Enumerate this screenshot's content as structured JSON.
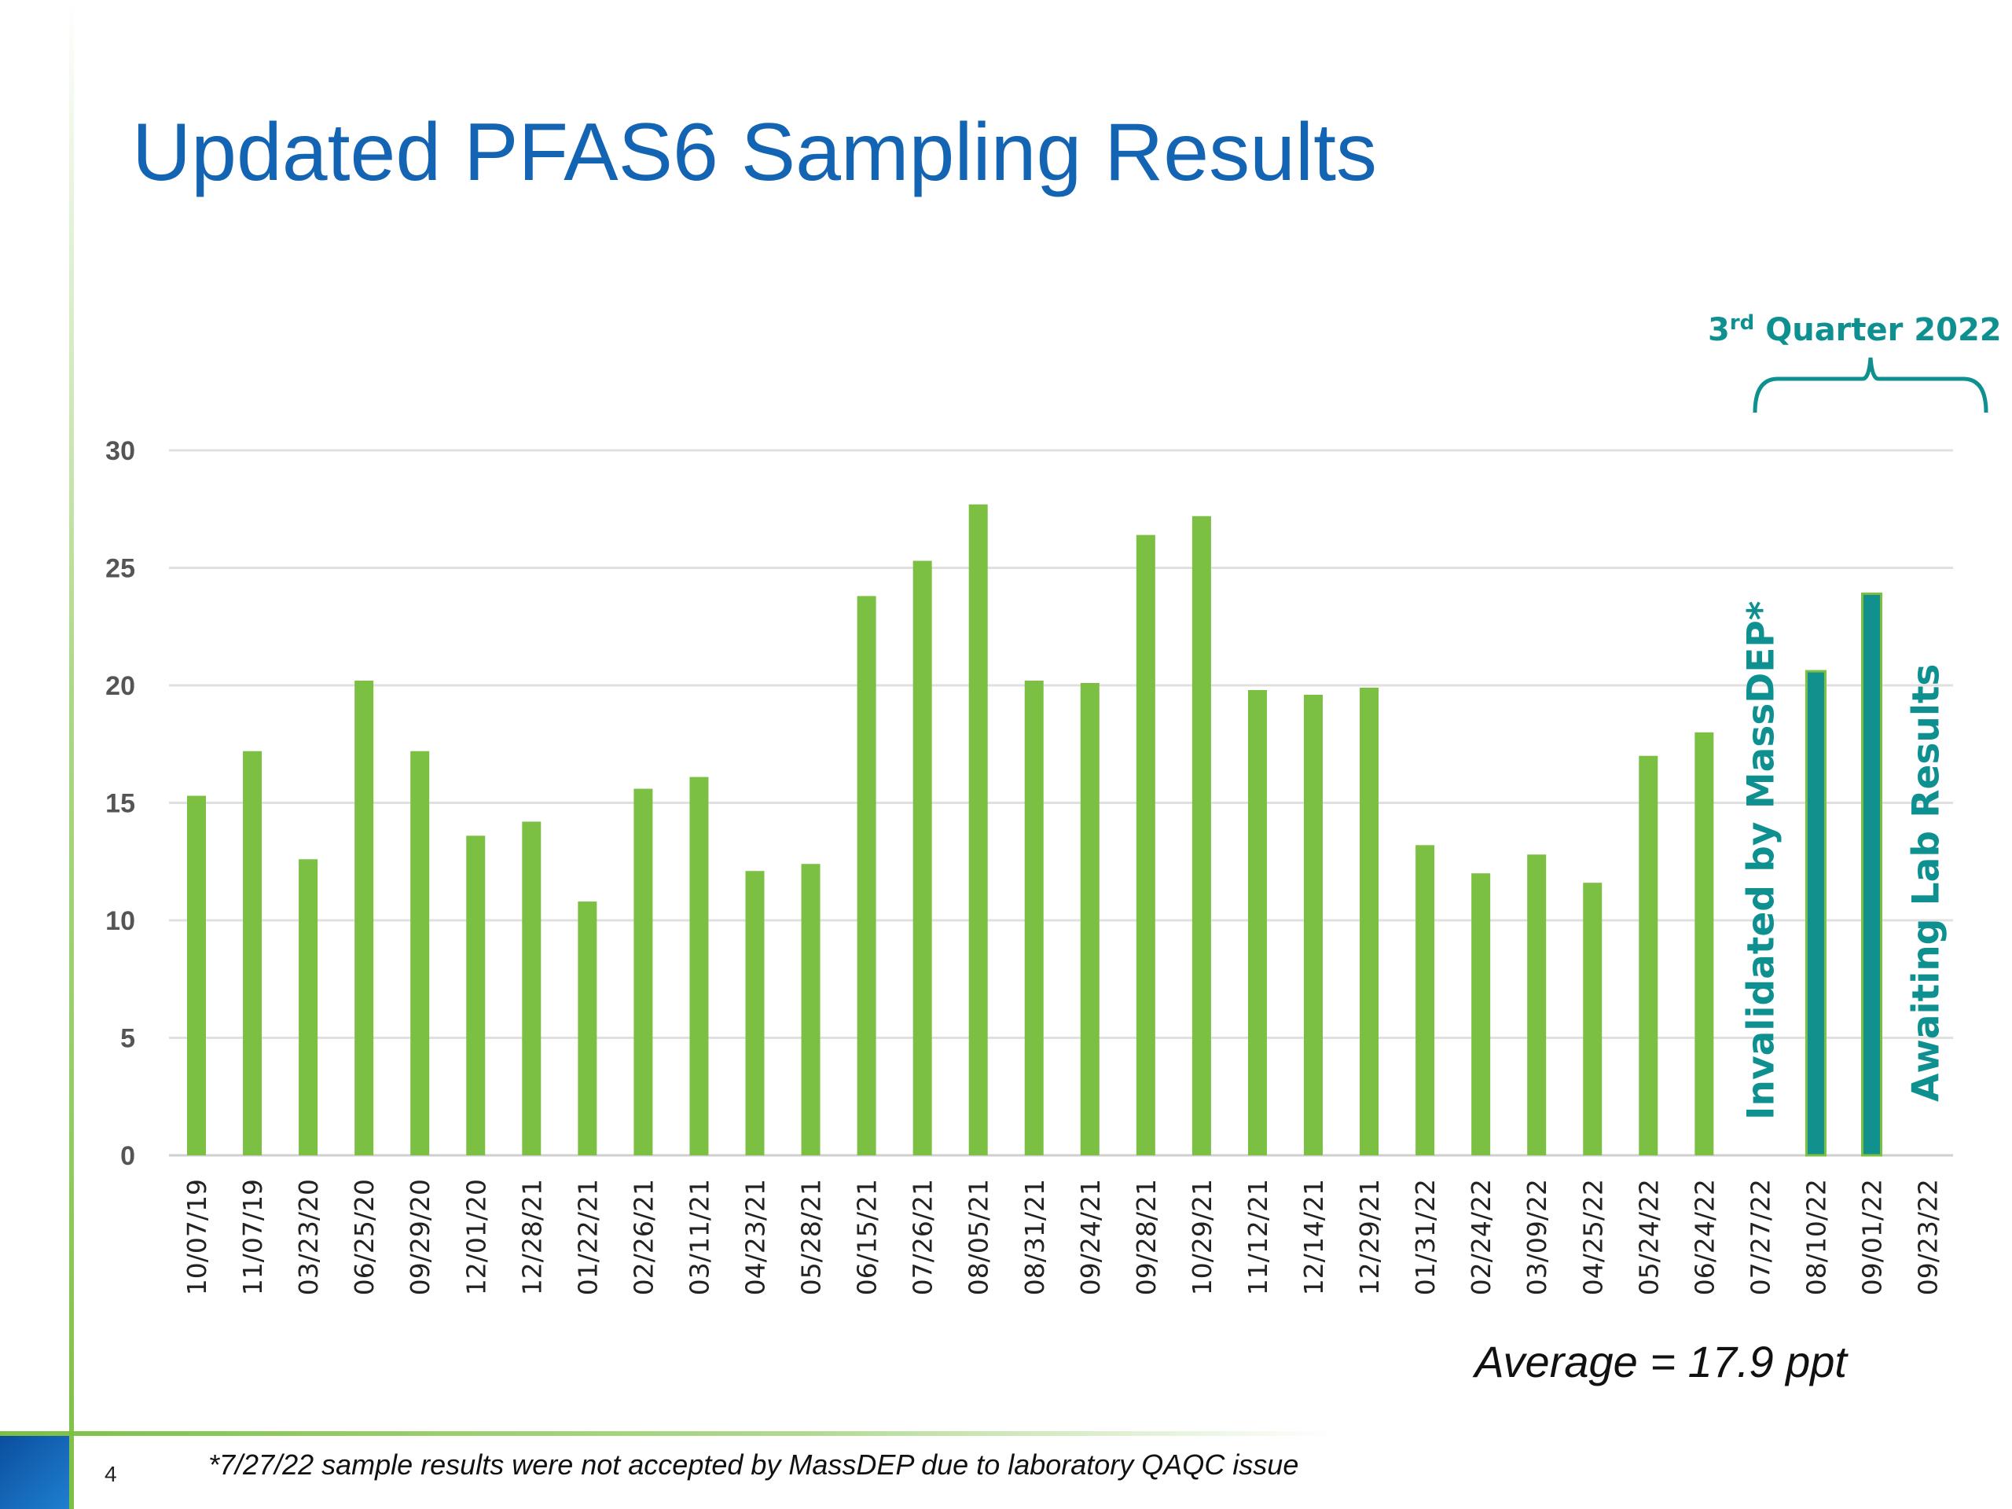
{
  "slide": {
    "title": "Updated PFAS6 Sampling Results",
    "average_note": "Average = 17.9 ppt",
    "footnote": "*7/27/22 sample results were not accepted by MassDEP due to laboratory QAQC issue",
    "page_number": "4"
  },
  "chart_data": {
    "type": "bar",
    "title": "Updated PFAS6 Sampling Results",
    "xlabel": "",
    "ylabel": "",
    "ylim": [
      0,
      30
    ],
    "yticks": [
      0,
      5,
      10,
      15,
      20,
      25,
      30
    ],
    "grid": true,
    "categories": [
      "10/07/19",
      "11/07/19",
      "03/23/20",
      "06/25/20",
      "09/29/20",
      "12/01/20",
      "12/28/21",
      "01/22/21",
      "02/26/21",
      "03/11/21",
      "04/23/21",
      "05/28/21",
      "06/15/21",
      "07/26/21",
      "08/05/21",
      "08/31/21",
      "09/24/21",
      "09/28/21",
      "10/29/21",
      "11/12/21",
      "12/14/21",
      "12/29/21",
      "01/31/22",
      "02/24/22",
      "03/09/22",
      "04/25/22",
      "05/24/22",
      "06/24/22",
      "07/27/22",
      "08/10/22",
      "09/01/22",
      "09/23/22"
    ],
    "values": [
      15.3,
      17.2,
      12.6,
      20.2,
      17.2,
      13.6,
      14.2,
      10.8,
      15.6,
      16.1,
      12.1,
      12.4,
      23.8,
      25.3,
      27.7,
      20.2,
      20.1,
      26.4,
      27.2,
      19.8,
      19.6,
      19.9,
      13.2,
      12.0,
      12.8,
      11.6,
      17.0,
      18.0,
      null,
      20.6,
      23.9,
      null
    ],
    "series_colors": {
      "default": "#7cc043",
      "q3_2022": "#12908e",
      "q3_2022_outline": "#7cc043"
    },
    "highlight_categories": [
      "08/10/22",
      "09/01/22"
    ],
    "annotations": {
      "bracket_label_main": "3",
      "bracket_label_sup": "rd",
      "bracket_label_rest": " Quarter 2022",
      "invalidated": "Invalidated by MassDEP*",
      "awaiting": "Awaiting Lab Results"
    },
    "average": 17.9
  }
}
